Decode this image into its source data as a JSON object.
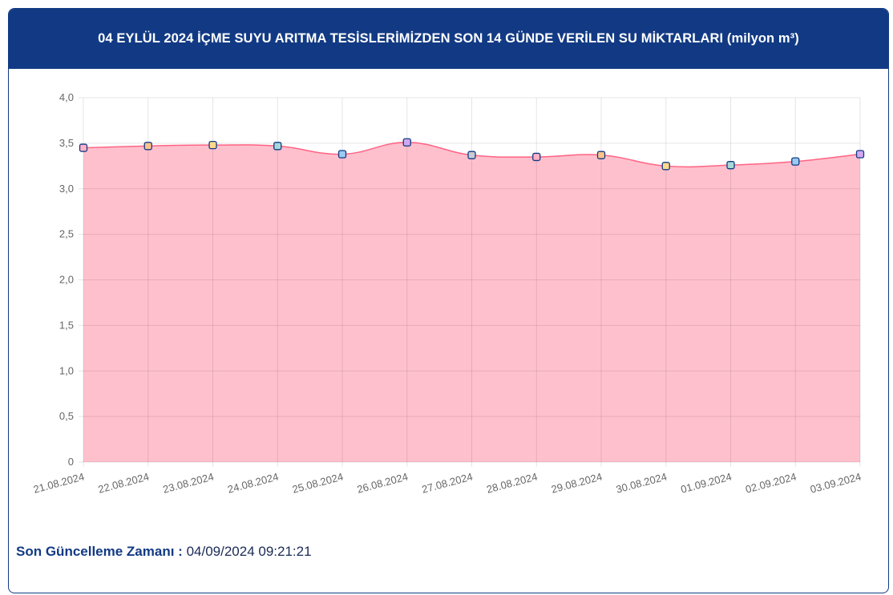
{
  "header": {
    "title": "04 EYLÜL 2024 İÇME SUYU ARITMA TESİSLERİMİZDEN SON 14 GÜNDE VERİLEN SU MİKTARLARI (milyon m³)"
  },
  "footer": {
    "label": "Son Güncelleme Zamanı :",
    "value": "04/09/2024 09:21:21"
  },
  "chart_data": {
    "type": "area",
    "title": "",
    "xlabel": "",
    "ylabel": "",
    "ylim": [
      0,
      4
    ],
    "yticks": [
      "0",
      "0,5",
      "1,0",
      "1,5",
      "2,0",
      "2,5",
      "3,0",
      "3,5",
      "4,0"
    ],
    "categories": [
      "21.08.2024",
      "22.08.2024",
      "23.08.2024",
      "24.08.2024",
      "25.08.2024",
      "26.08.2024",
      "27.08.2024",
      "28.08.2024",
      "29.08.2024",
      "30.08.2024",
      "01.09.2024",
      "02.09.2024",
      "03.09.2024"
    ],
    "values": [
      3.45,
      3.47,
      3.48,
      3.47,
      3.38,
      3.51,
      3.37,
      3.35,
      3.37,
      3.25,
      3.26,
      3.3,
      3.38
    ],
    "grid": true,
    "colors": {
      "line": "#ff6384",
      "fill": "#ffc0cd",
      "marker_border": "#123a84",
      "markers": [
        "#ffb3c6",
        "#ffc48a",
        "#ffd98a",
        "#a8d8d8",
        "#9ccaf0",
        "#d0a8f0",
        "#c8ccd2",
        "#ffb3c6",
        "#ffc48a",
        "#ffd98a",
        "#a8d8d8",
        "#9ccaf0",
        "#d0a8f0"
      ]
    }
  }
}
